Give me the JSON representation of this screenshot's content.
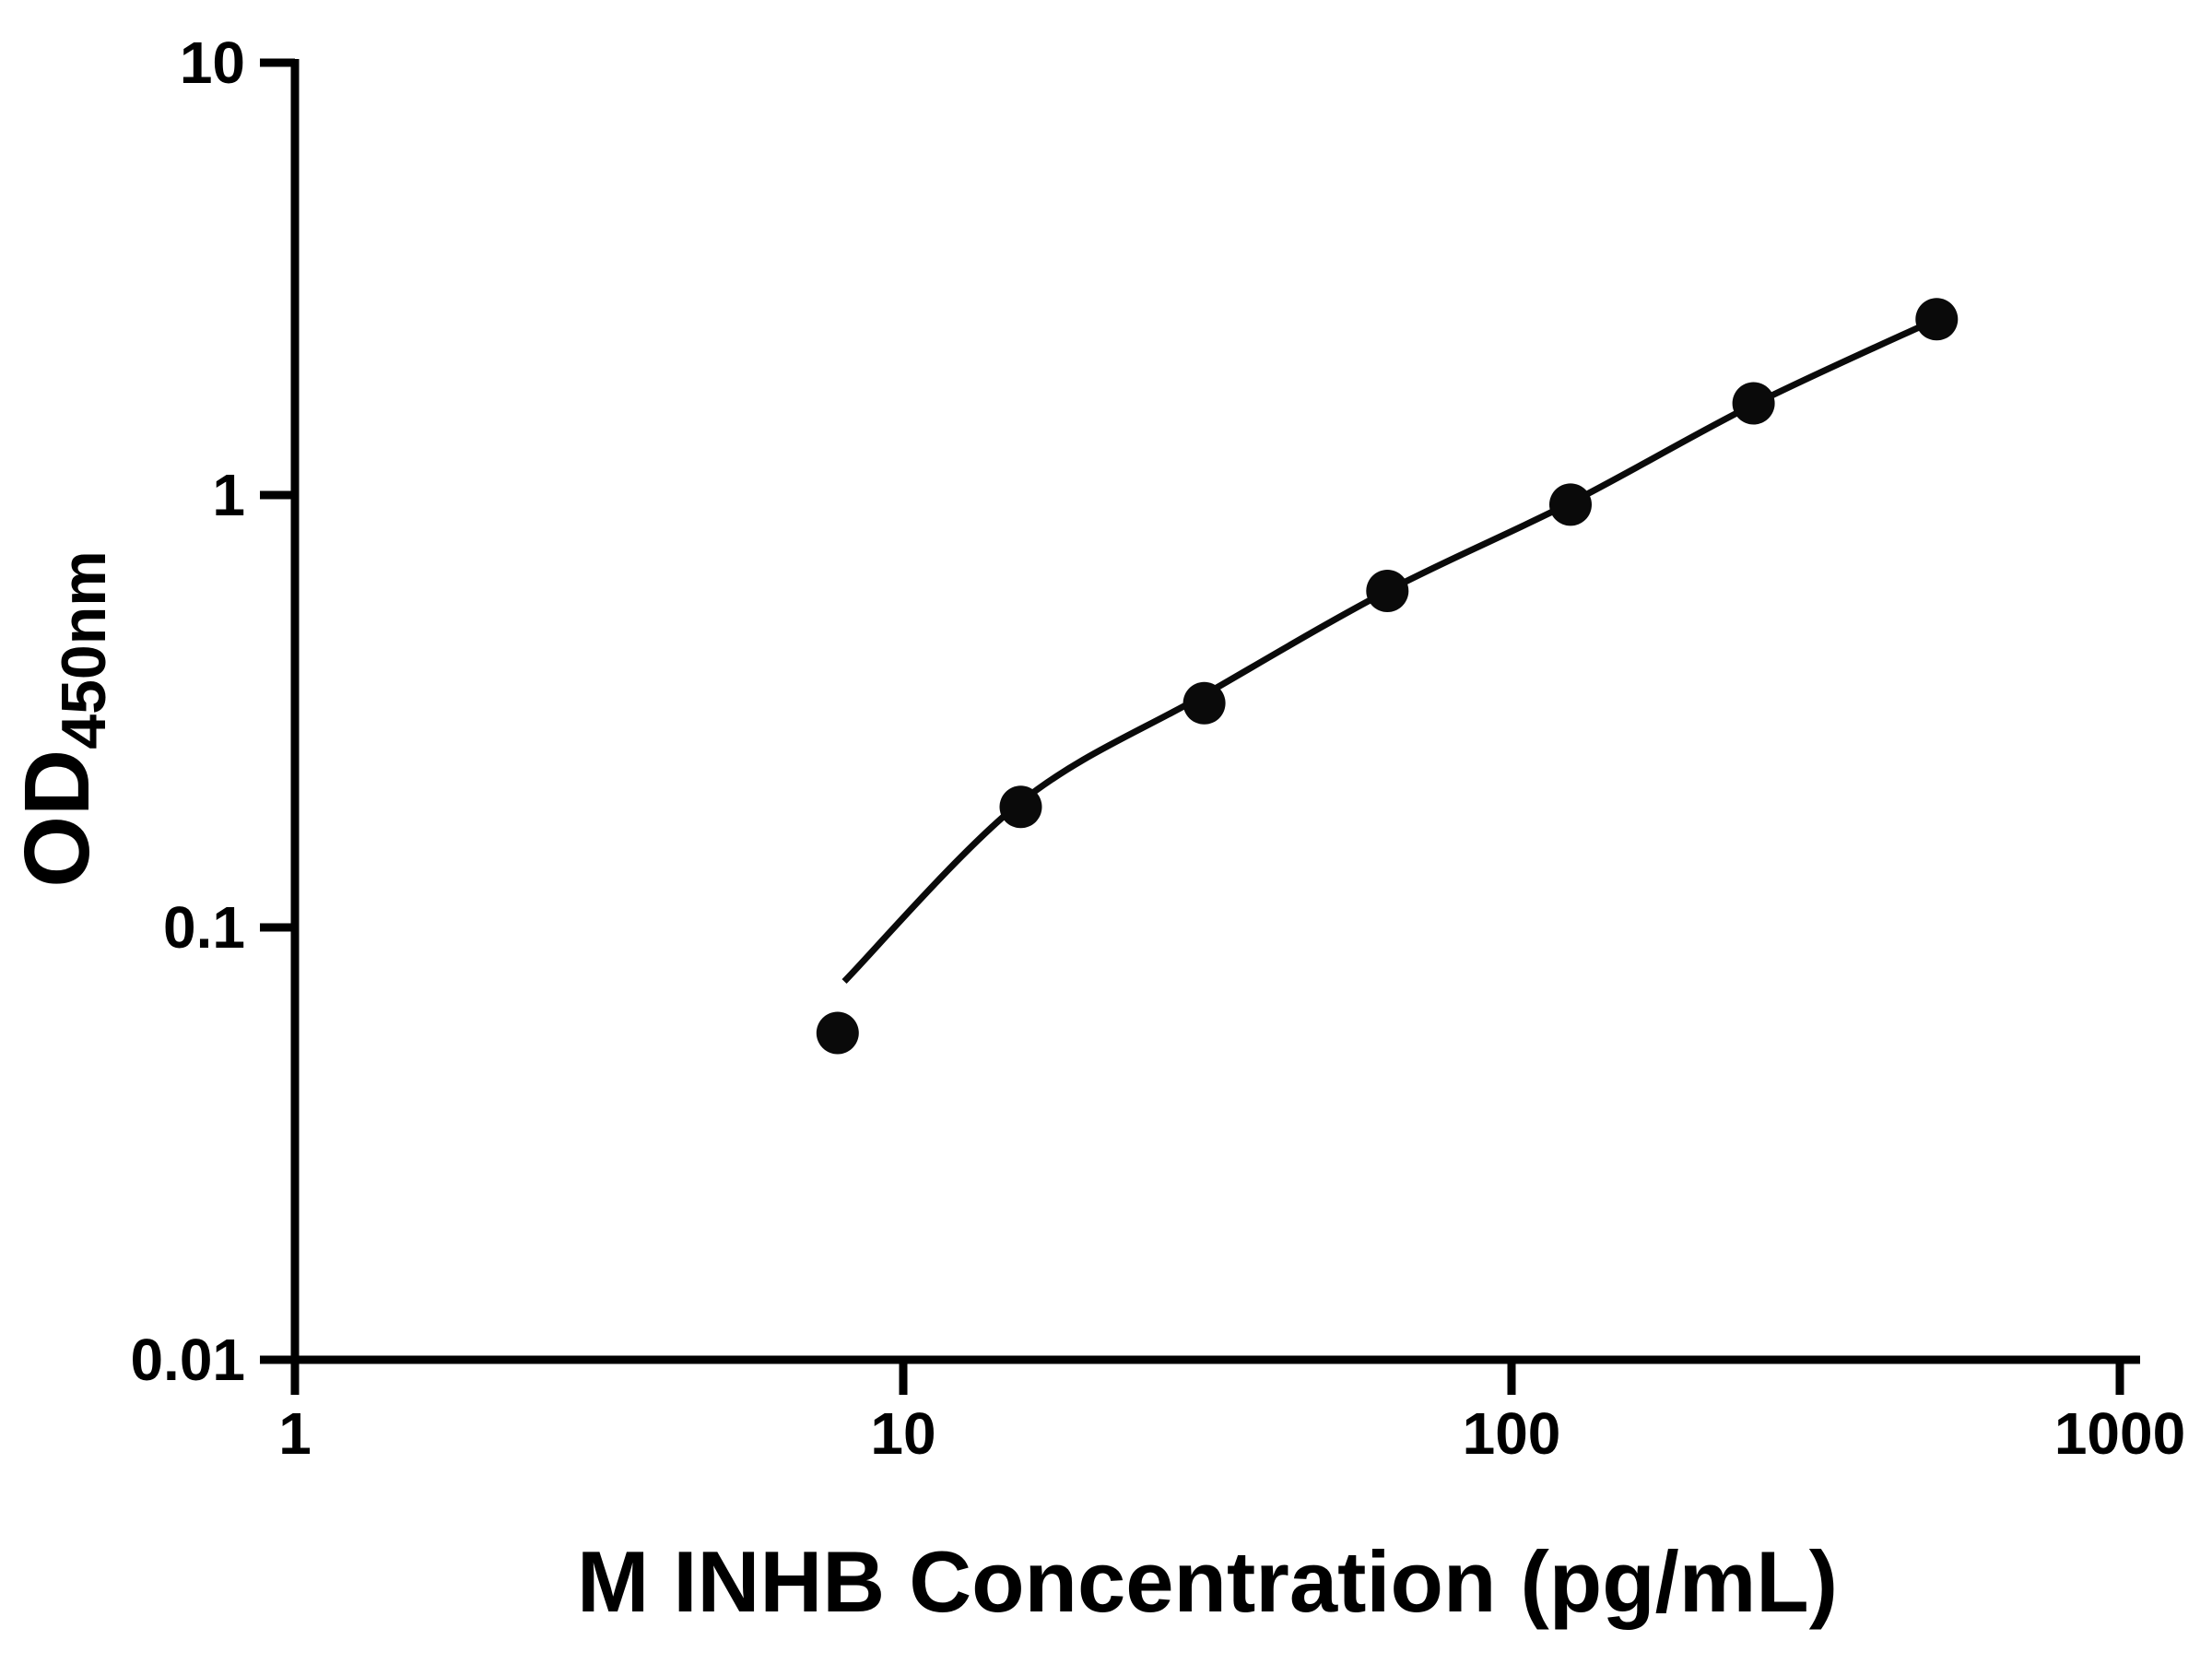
{
  "chart_data": {
    "type": "scatter",
    "title": "",
    "xlabel": "M INHB Concentration (pg/mL)",
    "ylabel": "OD",
    "ylabel_subscript": "450nm",
    "x_scale": "log",
    "y_scale": "log",
    "xlim": [
      1,
      1000
    ],
    "ylim": [
      0.01,
      10
    ],
    "x_ticks": [
      "1",
      "10",
      "100",
      "1000"
    ],
    "y_ticks": [
      "0.01",
      "0.1",
      "1",
      "10"
    ],
    "grid": false,
    "legend": "none",
    "series": [
      {
        "name": "standard-points",
        "marker": "filled-circle",
        "color": "#0a0a0a",
        "x": [
          7.8,
          15.6,
          31.25,
          62.5,
          125,
          250,
          500
        ],
        "y": [
          0.057,
          0.19,
          0.33,
          0.6,
          0.95,
          1.63,
          2.55
        ]
      },
      {
        "name": "fit-curve",
        "marker": "none",
        "color": "#0a0a0a",
        "x": [
          8.0,
          15.6,
          31.25,
          62.5,
          125,
          250,
          500
        ],
        "y": [
          0.075,
          0.195,
          0.345,
          0.6,
          0.96,
          1.62,
          2.55
        ]
      }
    ],
    "colors": {
      "axis": "#000000",
      "point": "#0a0a0a",
      "curve": "#0a0a0a"
    }
  }
}
